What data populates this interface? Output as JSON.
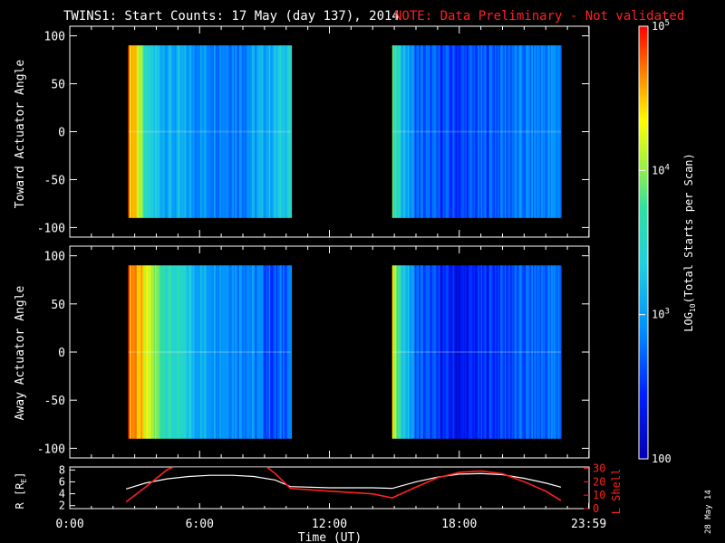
{
  "title": "TWINS1: Start Counts: 17 May (day 137), 2014",
  "note": "NOTE: Data Preliminary - Not validated",
  "date_stamp": "28 May 14",
  "colors": {
    "background": "#000000",
    "foreground": "#ffffff",
    "note": "#ff2020",
    "lshell": "#ff2020",
    "radius": "#ffffff"
  },
  "chart_data": [
    {
      "type": "heatmap",
      "panel": "toward",
      "ylabel": "Toward Actuator Angle",
      "ylim": [
        -110,
        110
      ],
      "yticks": [
        100,
        50,
        0,
        -50,
        -100
      ],
      "angle_range": [
        -90,
        90
      ],
      "time_hours": [
        2.7,
        3.0,
        3.5,
        4.5,
        6.0,
        8.0,
        9.5,
        10.2,
        14.9,
        15.2,
        16.0,
        18.0,
        20.0,
        22.7
      ],
      "log10_counts": [
        4.6,
        4.55,
        3.4,
        3.1,
        2.95,
        2.9,
        3.2,
        3.5,
        3.7,
        3.4,
        2.7,
        2.55,
        2.75,
        2.9
      ],
      "gaps": [
        [
          0,
          2.7
        ],
        [
          10.2,
          14.9
        ],
        [
          22.7,
          24
        ]
      ]
    },
    {
      "type": "heatmap",
      "panel": "away",
      "ylabel": "Away Actuator Angle",
      "ylim": [
        -110,
        110
      ],
      "yticks": [
        100,
        50,
        0,
        -50,
        -100
      ],
      "angle_range": [
        -90,
        90
      ],
      "time_hours": [
        2.7,
        3.0,
        3.5,
        4.5,
        6.0,
        8.0,
        9.5,
        10.2,
        14.9,
        15.2,
        16.0,
        18.0,
        20.0,
        22.7
      ],
      "log10_counts": [
        4.7,
        4.7,
        4.2,
        3.6,
        3.1,
        2.95,
        2.6,
        2.9,
        4.2,
        3.6,
        2.7,
        2.3,
        2.6,
        2.8
      ],
      "gaps": [
        [
          0,
          2.7
        ],
        [
          10.2,
          14.9
        ],
        [
          22.7,
          24
        ]
      ]
    },
    {
      "type": "line",
      "panel": "orbit",
      "xlabel": "Time (UT)",
      "xlim": [
        0,
        24
      ],
      "xticks": [
        "0:00",
        "6:00",
        "12:00",
        "18:00",
        "23:59"
      ],
      "y_left_label": "R [RE]",
      "y_left_ticks": [
        2,
        4,
        6,
        8
      ],
      "y_left_lim": [
        1.5,
        8.5
      ],
      "y_right_label": "L Shell",
      "y_right_ticks": [
        0,
        10,
        20,
        30
      ],
      "y_right_lim": [
        0,
        31
      ],
      "series": [
        {
          "name": "R",
          "x": [
            2.6,
            3.5,
            4.5,
            5.5,
            6.5,
            7.5,
            8.5,
            9.5,
            10.2,
            12,
            14,
            14.9,
            16,
            17,
            18,
            19,
            20,
            21,
            22,
            22.7
          ],
          "y": [
            4.8,
            5.8,
            6.5,
            6.9,
            7.1,
            7.1,
            6.9,
            6.3,
            5.2,
            5.0,
            5.0,
            4.9,
            6.0,
            6.8,
            7.3,
            7.4,
            7.2,
            6.6,
            5.8,
            5.1
          ]
        },
        {
          "name": "L Shell",
          "x": [
            2.6,
            3.5,
            4.5,
            4.8,
            9.1,
            9.5,
            10.2,
            12,
            14,
            14.9,
            16,
            17,
            18,
            19,
            20,
            21,
            22,
            22.7
          ],
          "y": [
            5,
            16,
            29,
            31,
            31,
            26,
            15,
            13,
            11,
            8,
            16,
            23,
            27,
            28,
            26,
            20,
            13,
            6
          ]
        }
      ]
    }
  ],
  "colorbar": {
    "label": "LOG",
    "label_sub": "10",
    "label_rest": "(Total Starts per Scan)",
    "range": [
      2,
      5
    ],
    "ticks": [
      {
        "value": 5,
        "base": "10",
        "exp": "5"
      },
      {
        "value": 4,
        "base": "10",
        "exp": "4"
      },
      {
        "value": 3,
        "base": "10",
        "exp": "3"
      },
      {
        "value": 2,
        "base": "100",
        "exp": ""
      }
    ]
  },
  "orbit_axis": {
    "left_label": "R [R",
    "left_sub": "E",
    "left_close": "]",
    "right_label": "L Shell"
  }
}
